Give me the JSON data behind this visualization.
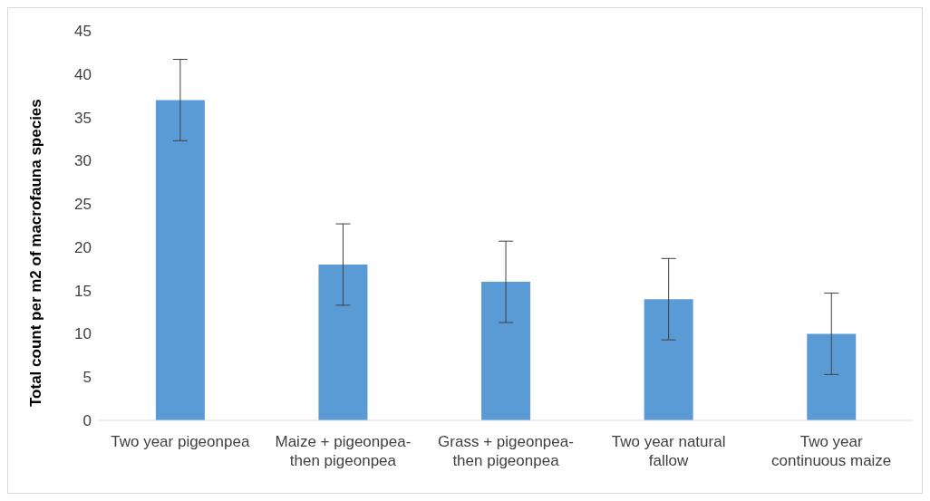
{
  "chart_data": {
    "type": "bar",
    "ylabel": "Total count per m2 of macrofauna species",
    "categories": [
      "Two year pigeonpea",
      "Maize + pigeonpea-then pigeonpea",
      "Grass + pigeonpea-then pigeonpea",
      "Two year natural fallow",
      "Two year continuous maize"
    ],
    "values": [
      37,
      18,
      16,
      14,
      10
    ],
    "errors": [
      4.7,
      4.7,
      4.7,
      4.7,
      4.7
    ],
    "color": "#5b9bd5",
    "ylim": [
      0,
      45
    ],
    "yticks": [
      0,
      5,
      10,
      15,
      20,
      25,
      30,
      35,
      40,
      45
    ],
    "grid": false,
    "legend": false
  }
}
